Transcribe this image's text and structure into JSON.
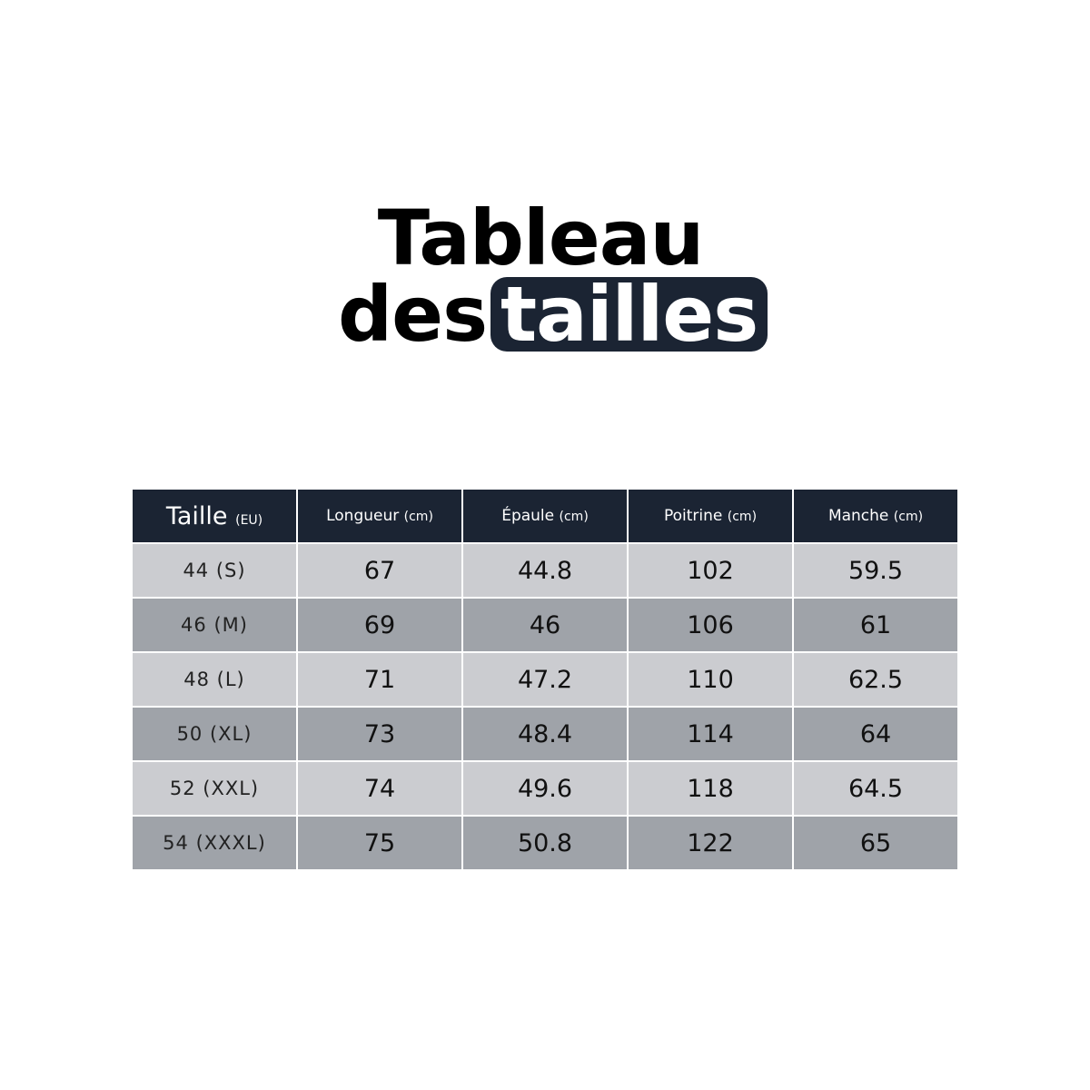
{
  "title": {
    "line1": "Tableau",
    "line2": "des",
    "highlight": "tailles"
  },
  "colors": {
    "header": "#1b2433",
    "row_light": "#cbccd0",
    "row_dark": "#9fa3a9"
  },
  "table": {
    "headers": [
      {
        "label": "Taille",
        "unit": "(EU)"
      },
      {
        "label": "Longueur",
        "unit": "(cm)"
      },
      {
        "label": "Épaule",
        "unit": "(cm)"
      },
      {
        "label": "Poitrine",
        "unit": "(cm)"
      },
      {
        "label": "Manche",
        "unit": "(cm)"
      }
    ],
    "rows": [
      [
        "44 (S)",
        "67",
        "44.8",
        "102",
        "59.5"
      ],
      [
        "46 (M)",
        "69",
        "46",
        "106",
        "61"
      ],
      [
        "48 (L)",
        "71",
        "47.2",
        "110",
        "62.5"
      ],
      [
        "50 (XL)",
        "73",
        "48.4",
        "114",
        "64"
      ],
      [
        "52 (XXL)",
        "74",
        "49.6",
        "118",
        "64.5"
      ],
      [
        "54 (XXXL)",
        "75",
        "50.8",
        "122",
        "65"
      ]
    ]
  }
}
